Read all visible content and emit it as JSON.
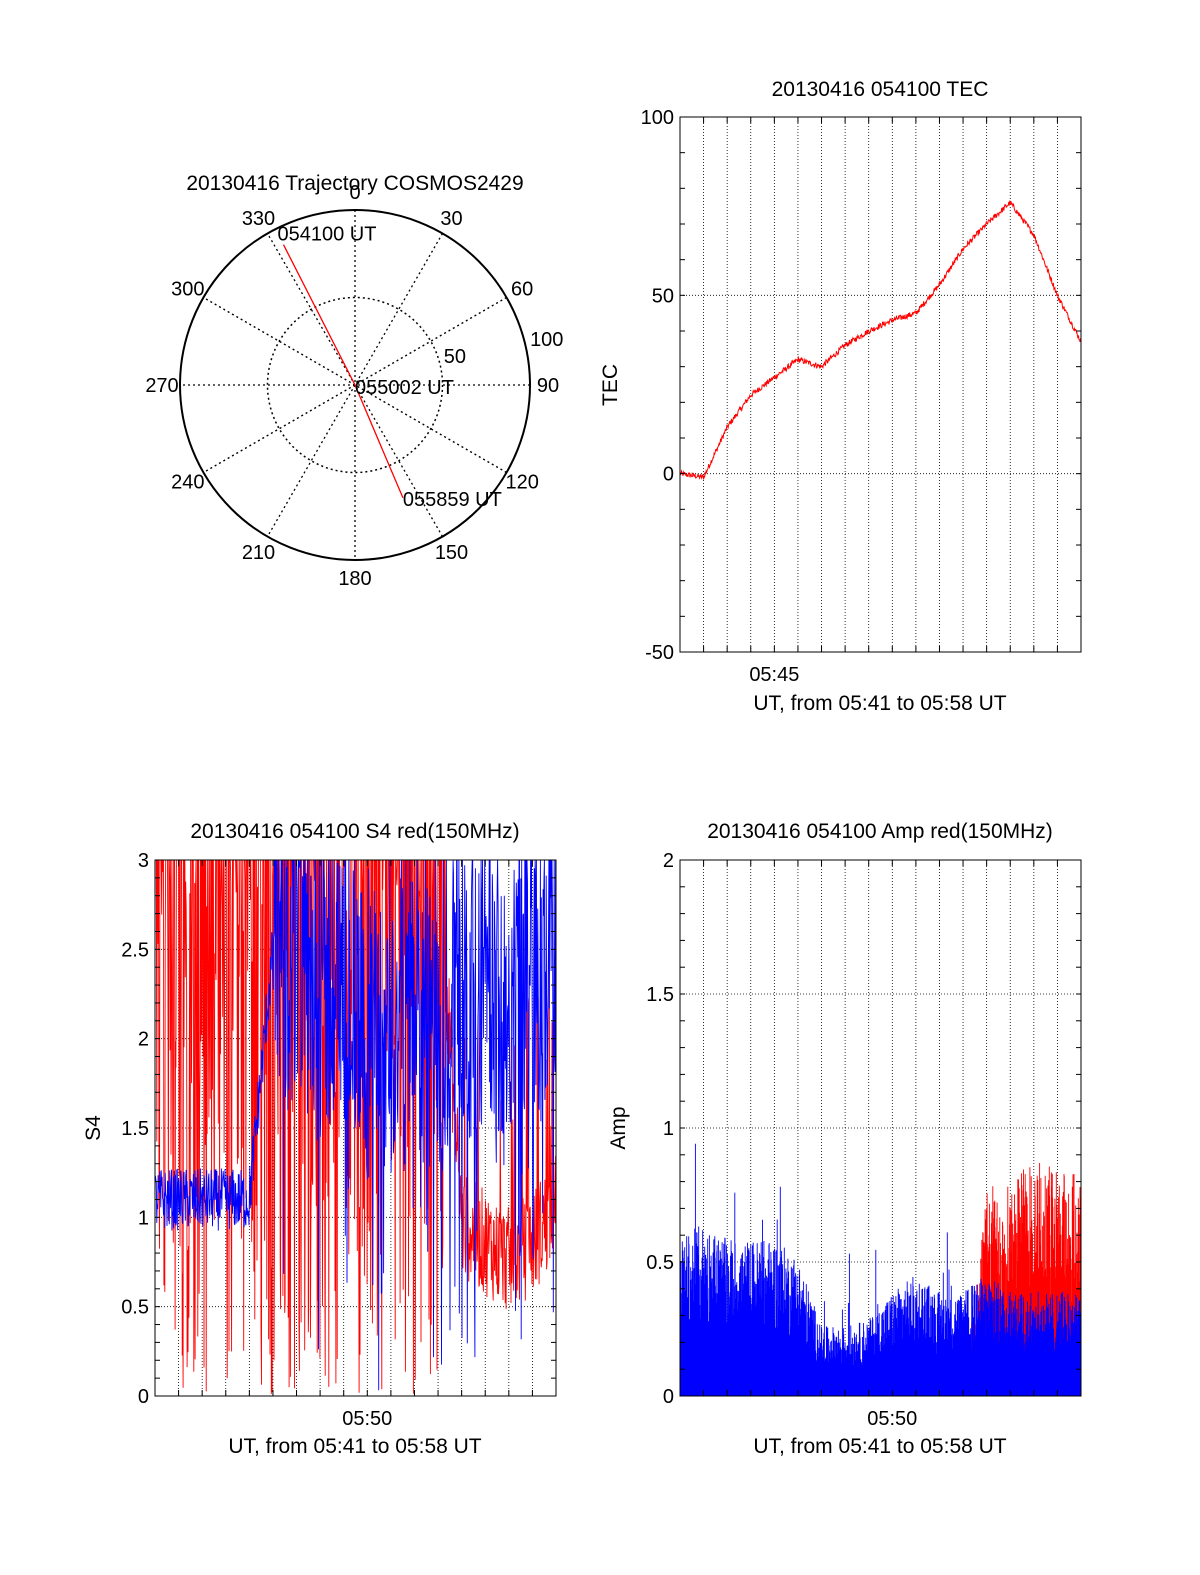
{
  "chart_data": [
    {
      "type": "polar",
      "title": "20130416 Trajectory COSMOS2429",
      "angle_labels": [
        "0",
        "30",
        "60",
        "90",
        "120",
        "150",
        "180",
        "210",
        "240",
        "270",
        "300",
        "330"
      ],
      "radial_labels": [
        "50",
        "100"
      ],
      "rlim": [
        0,
        100
      ],
      "grid": true,
      "series": [
        {
          "color": "#ff0000",
          "points": [
            {
              "azimuth": 333,
              "radius": 90,
              "label": "054100 UT"
            },
            {
              "azimuth": 0,
              "radius": 0,
              "label": "055002 UT"
            },
            {
              "azimuth": 157,
              "radius": 70,
              "label": "055859 UT"
            }
          ]
        }
      ]
    },
    {
      "type": "line",
      "title": "20130416 054100 TEC",
      "xlabel": "UT, from 05:41 to 05:58 UT",
      "ylabel": "TEC",
      "xlim": [
        "05:41",
        "05:58"
      ],
      "ylim": [
        -50,
        100
      ],
      "yticks": [
        "-50",
        "0",
        "50",
        "100"
      ],
      "xticks": [
        "05:45"
      ],
      "grid": true,
      "series": [
        {
          "color": "#ff0000",
          "x": [
            "05:41",
            "05:42",
            "05:43",
            "05:44",
            "05:45",
            "05:46",
            "05:47",
            "05:48",
            "05:49",
            "05:50",
            "05:51",
            "05:52",
            "05:53",
            "05:54",
            "05:55",
            "05:56",
            "05:57",
            "05:58"
          ],
          "y": [
            0,
            -1,
            13,
            22,
            27,
            32,
            30,
            36,
            40,
            43,
            45,
            53,
            63,
            70,
            76,
            67,
            50,
            37
          ]
        }
      ]
    },
    {
      "type": "line",
      "title": "20130416 054100 S4 red(150MHz)",
      "xlabel": "UT, from 05:41 to 05:58 UT",
      "ylabel": "S4",
      "xlim": [
        "05:41",
        "05:58"
      ],
      "ylim": [
        0,
        3
      ],
      "yticks": [
        "0",
        "0.5",
        "1",
        "1.5",
        "2",
        "2.5",
        "3"
      ],
      "xticks": [
        "05:50"
      ],
      "grid": true,
      "series": [
        {
          "color": "#ff0000",
          "x": [
            "05:41",
            "05:42",
            "05:43",
            "05:44",
            "05:45",
            "05:46",
            "05:47",
            "05:48",
            "05:49",
            "05:50",
            "05:51",
            "05:52",
            "05:53",
            "05:54",
            "05:55",
            "05:56",
            "05:57",
            "05:58"
          ],
          "y": [
            3,
            3,
            3,
            3,
            3,
            3,
            3,
            3,
            3,
            3,
            3,
            3,
            3,
            0.9,
            0.8,
            0.7,
            0.8,
            1.0
          ]
        },
        {
          "color": "#0000ff",
          "x": [
            "05:41",
            "05:42",
            "05:43",
            "05:44",
            "05:45",
            "05:46",
            "05:47",
            "05:48",
            "05:49",
            "05:50",
            "05:51",
            "05:52",
            "05:53",
            "05:54",
            "05:55",
            "05:56",
            "05:57",
            "05:58"
          ],
          "y": [
            1.1,
            1.1,
            1.1,
            1.1,
            1.1,
            2.5,
            2.4,
            2.2,
            2.3,
            2.0,
            2.0,
            2.1,
            2.0,
            2.2,
            2.3,
            2.2,
            2.4,
            2.4
          ]
        }
      ]
    },
    {
      "type": "line",
      "title": "20130416 054100 Amp red(150MHz)",
      "xlabel": "UT, from 05:41 to 05:58 UT",
      "ylabel": "Amp",
      "xlim": [
        "05:41",
        "05:58"
      ],
      "ylim": [
        0,
        2
      ],
      "yticks": [
        "0",
        "0.5",
        "1",
        "1.5",
        "2"
      ],
      "xticks": [
        "05:50"
      ],
      "grid": true,
      "series": [
        {
          "color": "#0000ff",
          "x": [
            "05:41",
            "05:42",
            "05:43",
            "05:44",
            "05:45",
            "05:46",
            "05:47",
            "05:48",
            "05:49",
            "05:50",
            "05:51",
            "05:52",
            "05:53",
            "05:54",
            "05:55",
            "05:56",
            "05:57",
            "05:58"
          ],
          "y": [
            0.45,
            0.5,
            0.45,
            0.45,
            0.45,
            0.4,
            0.2,
            0.2,
            0.22,
            0.3,
            0.35,
            0.3,
            0.3,
            0.35,
            0.3,
            0.3,
            0.3,
            0.3
          ]
        },
        {
          "color": "#ff0000",
          "x": [
            "05:41",
            "05:42",
            "05:43",
            "05:44",
            "05:45",
            "05:46",
            "05:47",
            "05:48",
            "05:49",
            "05:50",
            "05:51",
            "05:52",
            "05:53",
            "05:54",
            "05:55",
            "05:56",
            "05:57",
            "05:58"
          ],
          "y": [
            0,
            0,
            0,
            0,
            0,
            0,
            0,
            0,
            0,
            0,
            0,
            0,
            0,
            0.55,
            0.6,
            0.65,
            0.6,
            0.6
          ]
        }
      ]
    }
  ]
}
